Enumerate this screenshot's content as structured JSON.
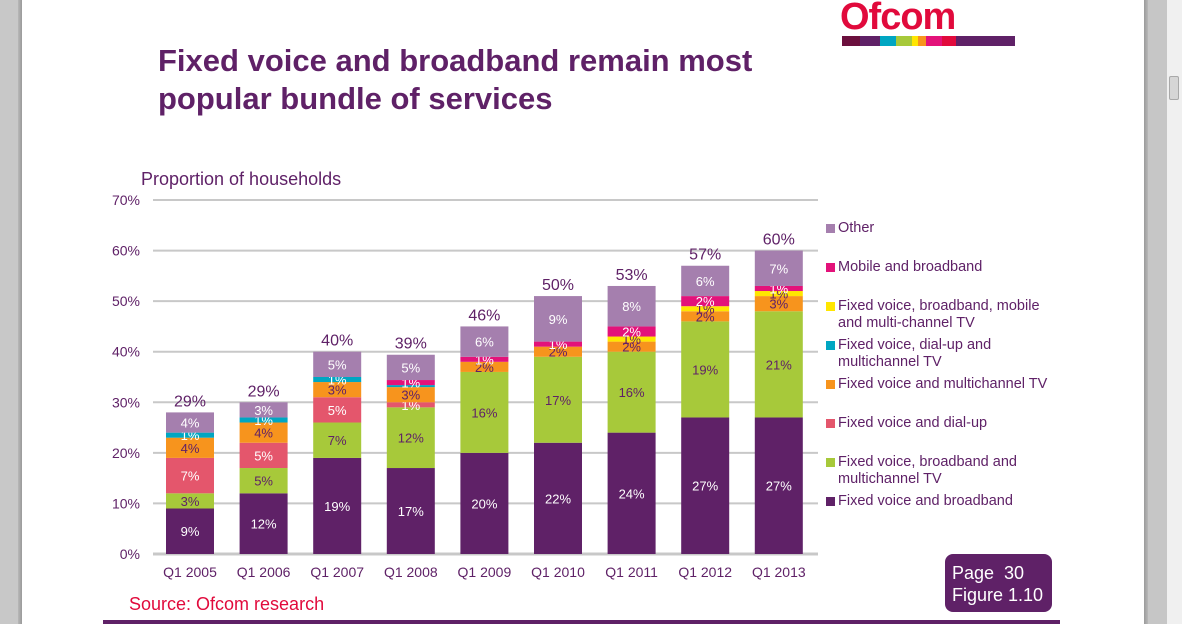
{
  "slide": {
    "title": "Fixed voice and broadband remain most popular bundle of services",
    "logo_text": "Ofcom",
    "logo_colors": [
      "#6b0f3d",
      "#5f2167",
      "#00a6c2",
      "#a7c93a",
      "#ffe600",
      "#f7941d",
      "#e3127a",
      "#e10a3c",
      "#5f2167"
    ],
    "source": "Source: Ofcom research",
    "page_label": "Page  30",
    "figure_label": "Figure 1.10"
  },
  "chart_data": {
    "type": "bar",
    "stacked": true,
    "title": "",
    "ylabel": "Proportion of households",
    "xlabel": "",
    "ylim": [
      0,
      70
    ],
    "yticks": [
      "0%",
      "10%",
      "20%",
      "30%",
      "40%",
      "50%",
      "60%",
      "70%"
    ],
    "grid": true,
    "legend_position": "right",
    "categories": [
      "Q1 2005",
      "Q1 2006",
      "Q1 2007",
      "Q1 2008",
      "Q1 2009",
      "Q1 2010",
      "Q1 2011",
      "Q1 2012",
      "Q1 2013"
    ],
    "totals": [
      "29%",
      "29%",
      "40%",
      "39%",
      "46%",
      "50%",
      "53%",
      "57%",
      "60%"
    ],
    "series": [
      {
        "name": "Fixed voice and broadband",
        "color": "#5f2167",
        "label_color": "#ffffff",
        "values": [
          9,
          12,
          19,
          17,
          20,
          22,
          24,
          27,
          27
        ]
      },
      {
        "name": "Fixed voice, broadband and multichannel TV",
        "color": "#a7c93a",
        "label_color": "#5f2167",
        "values": [
          3,
          5,
          7,
          12,
          16,
          17,
          16,
          19,
          21
        ]
      },
      {
        "name": "Fixed voice and dial-up",
        "color": "#e4566c",
        "label_color": "#ffffff",
        "values": [
          7,
          5,
          5,
          1,
          0,
          0,
          0,
          0,
          0
        ]
      },
      {
        "name": "Fixed voice and multichannel TV",
        "color": "#f7941d",
        "label_color": "#5f2167",
        "values": [
          4,
          4,
          3,
          3,
          2,
          2,
          2,
          2,
          3
        ]
      },
      {
        "name": "Fixed voice, dial-up and multichannel TV",
        "color": "#00a6c2",
        "label_color": "#ffffff",
        "values": [
          1,
          1,
          1,
          0.4,
          0,
          0,
          0,
          0,
          0
        ]
      },
      {
        "name": "Fixed voice, broadband, mobile and multi-channel TV",
        "color": "#ffe600",
        "label_color": "#5f2167",
        "values": [
          0,
          0,
          0,
          0,
          0,
          0,
          1,
          1,
          1
        ]
      },
      {
        "name": "Mobile and broadband",
        "color": "#e3127a",
        "label_color": "#ffffff",
        "values": [
          0,
          0,
          0,
          1,
          1,
          1,
          2,
          2,
          1
        ]
      },
      {
        "name": "Other",
        "color": "#a57fae",
        "label_color": "#ffffff",
        "values": [
          4,
          3,
          5,
          5,
          6,
          9,
          8,
          6,
          7
        ]
      }
    ],
    "labels": [
      [
        "9%",
        "3%",
        "7%",
        "4%",
        "1%",
        "",
        "",
        "4%"
      ],
      [
        "12%",
        "5%",
        "5%",
        "4%",
        "1%",
        "",
        "",
        "3%"
      ],
      [
        "19%",
        "7%",
        "5%",
        "3%",
        "1%",
        "",
        "",
        "5%"
      ],
      [
        "17%",
        "12%",
        "1%",
        "3%",
        "",
        "",
        "1%",
        "5%"
      ],
      [
        "20%",
        "16%",
        "",
        "2%",
        "",
        "",
        "1%",
        "6%"
      ],
      [
        "22%",
        "17%",
        "",
        "2%",
        "",
        "",
        "1%",
        "9%"
      ],
      [
        "24%",
        "16%",
        "",
        "2%",
        "",
        "1%",
        "2%",
        "8%"
      ],
      [
        "27%",
        "19%",
        "",
        "2%",
        "",
        "1%",
        "2%",
        "6%"
      ],
      [
        "27%",
        "21%",
        "",
        "3%",
        "",
        "1%",
        "1%",
        "7%"
      ]
    ],
    "legend_order": [
      "Other",
      "Mobile and broadband",
      "Fixed voice, broadband, mobile and multi-channel TV",
      "Fixed voice, dial-up and multichannel TV",
      "Fixed voice and multichannel TV",
      "Fixed voice and dial-up",
      "Fixed voice, broadband and multichannel TV",
      "Fixed voice and broadband"
    ]
  }
}
